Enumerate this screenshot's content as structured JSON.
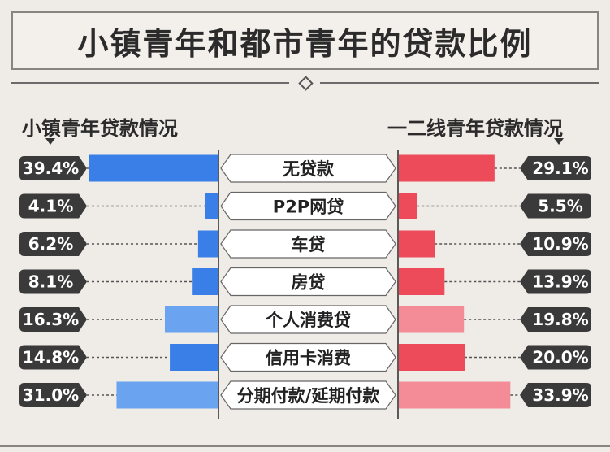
{
  "title": "小镇青年和都市青年的贷款比例",
  "left_heading": "小镇青年贷款情况",
  "right_heading": "一二线青年贷款情况",
  "colors": {
    "left_bar_dark": "#3a7fe8",
    "left_bar_light": "#6aa3f0",
    "right_bar_dark": "#ee4b5a",
    "right_bar_light": "#f38c97",
    "badge": "#3a3a3a"
  },
  "chart_data": {
    "type": "bar",
    "categories": [
      "无贷款",
      "P2P网贷",
      "车贷",
      "房贷",
      "个人消费贷",
      "信用卡消费",
      "分期付款/延期付款"
    ],
    "series": [
      {
        "name": "小镇青年贷款情况",
        "values": [
          39.4,
          4.1,
          6.2,
          8.1,
          16.3,
          14.8,
          31.0
        ],
        "labels": [
          "39.4%",
          "4.1%",
          "6.2%",
          "8.1%",
          "16.3%",
          "14.8%",
          "31.0%"
        ]
      },
      {
        "name": "一二线青年贷款情况",
        "values": [
          29.1,
          5.5,
          10.9,
          13.9,
          19.8,
          20.0,
          33.9
        ],
        "labels": [
          "29.1%",
          "5.5%",
          "10.9%",
          "13.9%",
          "19.8%",
          "20.0%",
          "33.9%"
        ]
      }
    ],
    "unit": "%"
  }
}
